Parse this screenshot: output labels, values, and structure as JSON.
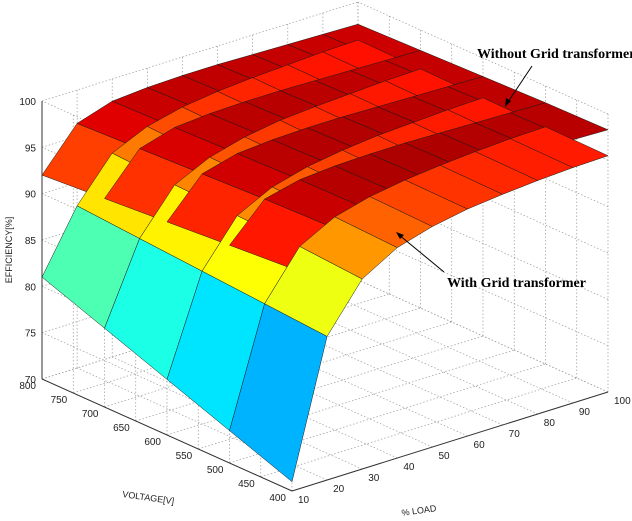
{
  "chart_data": {
    "type": "surface3d",
    "axes": {
      "x": {
        "label": "% LOAD",
        "ticks": [
          10,
          20,
          30,
          40,
          50,
          60,
          70,
          80,
          90,
          100
        ],
        "range": [
          10,
          100
        ]
      },
      "y": {
        "label": "VOLTAGE[V]",
        "ticks": [
          400,
          450,
          500,
          550,
          600,
          650,
          700,
          750,
          800
        ],
        "range": [
          400,
          800
        ]
      },
      "z": {
        "label": "EFFICIENCY[%]",
        "ticks": [
          70,
          75,
          80,
          85,
          90,
          95,
          100
        ],
        "range": [
          70,
          100
        ]
      }
    },
    "grid": true,
    "annotations": [
      {
        "text": "Without Grid transformer"
      },
      {
        "text": "With Grid transformer"
      }
    ],
    "series": [
      {
        "name": "Without Grid transformer",
        "load": [
          10,
          20,
          30,
          40,
          50,
          60,
          70,
          80,
          90,
          100
        ],
        "voltage": [
          400,
          500,
          600,
          700,
          800
        ],
        "efficiency": [
          [
            94.0,
            97.5,
            98.3,
            98.6,
            98.7,
            98.7,
            98.6,
            98.5,
            98.4,
            98.3
          ],
          [
            93.5,
            97.3,
            98.2,
            98.5,
            98.6,
            98.6,
            98.5,
            98.4,
            98.3,
            98.2
          ],
          [
            93.0,
            97.0,
            98.0,
            98.3,
            98.4,
            98.4,
            98.3,
            98.2,
            98.1,
            98.0
          ],
          [
            92.5,
            96.7,
            97.8,
            98.1,
            98.2,
            98.2,
            98.1,
            98.0,
            97.9,
            97.8
          ],
          [
            92.0,
            96.4,
            97.6,
            97.9,
            98.0,
            98.0,
            97.9,
            97.8,
            97.7,
            97.6
          ]
        ]
      },
      {
        "name": "With Grid transformer",
        "load": [
          10,
          20,
          30,
          40,
          50,
          60,
          70,
          80,
          90,
          100
        ],
        "voltage": [
          400,
          500,
          600,
          700,
          800
        ],
        "efficiency": [
          [
            71.0,
            85.5,
            90.5,
            92.7,
            93.8,
            94.5,
            94.9,
            95.2,
            95.4,
            95.5
          ],
          [
            73.5,
            86.0,
            91.0,
            93.0,
            94.0,
            94.6,
            95.0,
            95.3,
            95.5,
            95.6
          ],
          [
            76.0,
            86.5,
            91.3,
            93.2,
            94.2,
            94.8,
            95.2,
            95.4,
            95.6,
            95.7
          ],
          [
            78.5,
            87.0,
            91.6,
            93.4,
            94.4,
            95.0,
            95.3,
            95.5,
            95.7,
            95.8
          ],
          [
            81.0,
            87.5,
            92.0,
            93.7,
            94.6,
            95.1,
            95.4,
            95.6,
            95.8,
            95.9
          ]
        ]
      }
    ]
  }
}
